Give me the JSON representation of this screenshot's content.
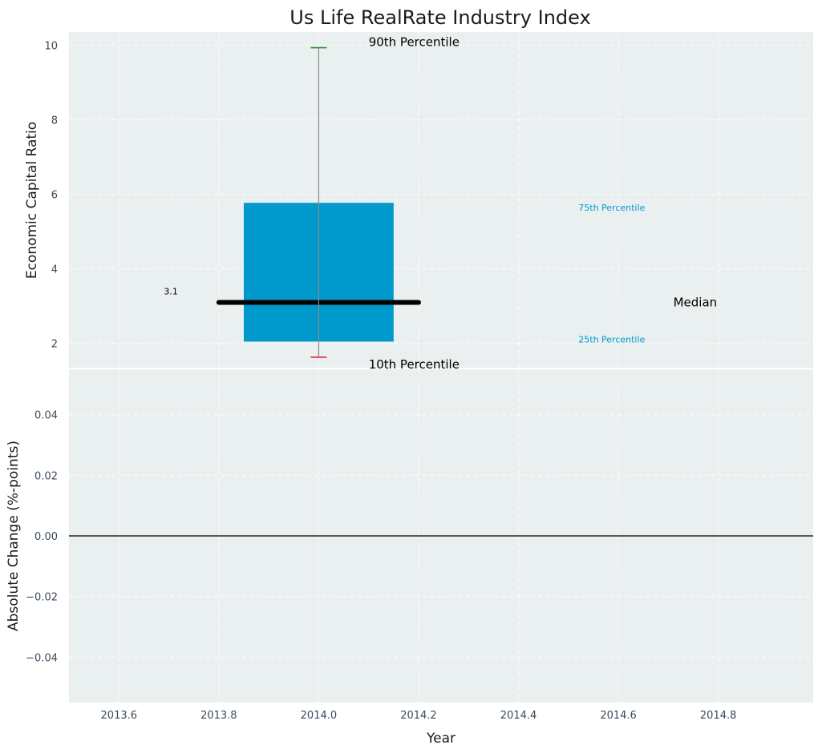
{
  "chart_data": [
    {
      "type": "box",
      "title": "Us Life RealRate Industry Index",
      "ylabel": "Economic Capital Ratio",
      "xlim": [
        2013.5,
        2014.99
      ],
      "ylim": [
        1.35,
        10.35
      ],
      "yticks": [
        2,
        4,
        6,
        8,
        10
      ],
      "grid": true,
      "box": {
        "x": 2014.0,
        "width": 0.3,
        "median_x_range": [
          2013.8,
          2014.2
        ],
        "p10": 1.63,
        "p25": 2.05,
        "median": 3.1,
        "p75": 5.77,
        "p90": 9.93
      },
      "annotations": {
        "p90_label": "90th Percentile",
        "p10_label": "10th Percentile",
        "p75_label": "75th Percentile",
        "p25_label": "25th Percentile",
        "median_label": "Median",
        "median_value_label": "3.1"
      },
      "colors": {
        "box": "#0099cc",
        "median": "#000000",
        "whisker": "#8a8a8a",
        "p90_cap": "#2e8b2e",
        "p10_cap": "#e03030",
        "background": "#eaeff0"
      }
    },
    {
      "type": "line",
      "ylabel": "Absolute Change (%-points)",
      "xlabel": "Year",
      "xlim": [
        2013.5,
        2014.99
      ],
      "ylim": [
        -0.055,
        0.055
      ],
      "yticks": [
        0.04,
        0.02,
        0.0,
        -0.02,
        -0.04
      ],
      "ytick_labels": [
        "0.04",
        "0.02",
        "0.00",
        "−0.02",
        "−0.04"
      ],
      "xticks": [
        2013.6,
        2013.8,
        2014.0,
        2014.2,
        2014.4,
        2014.6,
        2014.8
      ],
      "xtick_labels": [
        "2013.6",
        "2013.8",
        "2014.0",
        "2014.2",
        "2014.4",
        "2014.6",
        "2014.8"
      ],
      "reference_line": 0.0,
      "grid": true,
      "series": []
    }
  ]
}
